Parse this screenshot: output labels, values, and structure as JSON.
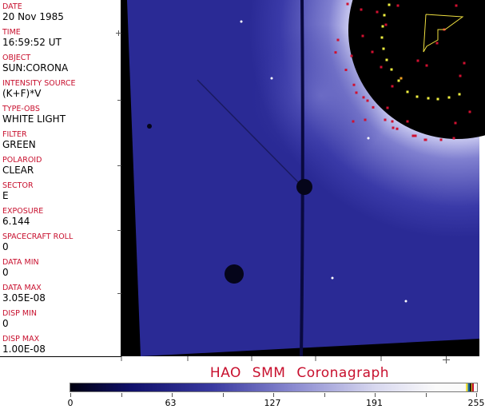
{
  "fields": [
    {
      "label": "DATE",
      "value": "20 Nov 1985"
    },
    {
      "label": "TIME",
      "value": "16:59:52 UT"
    },
    {
      "label": "OBJECT",
      "value": "SUN:CORONA"
    },
    {
      "label": "INTENSITY SOURCE",
      "value": "(K+F)*V"
    },
    {
      "label": "TYPE-OBS",
      "value": "WHITE LIGHT"
    },
    {
      "label": "FILTER",
      "value": "GREEN"
    },
    {
      "label": "POLAROID",
      "value": "CLEAR"
    },
    {
      "label": "SECTOR",
      "value": "E"
    },
    {
      "label": "EXPOSURE",
      "value": "6.144"
    },
    {
      "label": "SPACECRAFT ROLL",
      "value": "0"
    },
    {
      "label": "DATA MIN",
      "value": "0"
    },
    {
      "label": "DATA MAX",
      "value": "3.05E-08"
    },
    {
      "label": "DISP MIN",
      "value": "0"
    },
    {
      "label": "DISP MAX",
      "value": "1.00E-08"
    }
  ],
  "title": "HAO  SMM Coronagraph",
  "colorbar": {
    "ticks": [
      "0",
      "63",
      "127",
      "191",
      "255"
    ],
    "range": [
      0,
      255
    ],
    "colors": {
      "low": "#000010",
      "mid": "#3a3aa0",
      "high": "#fafafa"
    }
  },
  "colors": {
    "label": "#c8102e",
    "image": "#2a2a9a"
  }
}
